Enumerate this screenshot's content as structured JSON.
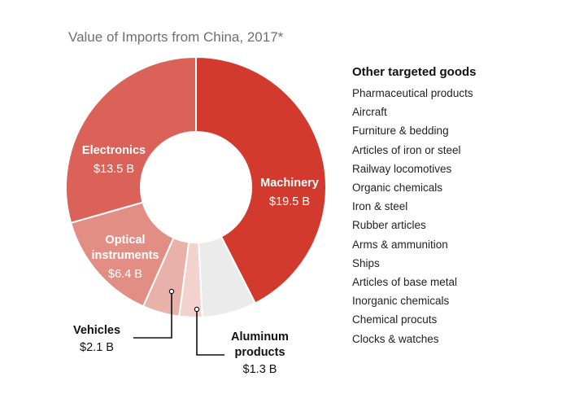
{
  "title": "Value of Imports from China, 2017*",
  "chart_data": {
    "type": "pie",
    "title": "Value of Imports from China, 2017*",
    "slices": [
      {
        "name": "Machinery",
        "label": "Machinery",
        "value": 19.5,
        "value_label": "$19.5 B",
        "color": "#d23a2d"
      },
      {
        "name": "Other",
        "label": "",
        "value": 3.1,
        "value_label": "",
        "color": "#ebebeb"
      },
      {
        "name": "Aluminum products",
        "label": "Aluminum products",
        "value": 1.3,
        "value_label": "$1.3 B",
        "color": "#f3d1cc"
      },
      {
        "name": "Vehicles",
        "label": "Vehicles",
        "value": 2.1,
        "value_label": "$2.1 B",
        "color": "#e8b1a9"
      },
      {
        "name": "Optical instruments",
        "label": "Optical instruments",
        "value": 6.4,
        "value_label": "$6.4 B",
        "color": "#e38e84"
      },
      {
        "name": "Electronics",
        "label": "Electronics",
        "value": 13.5,
        "value_label": "$13.5 B",
        "color": "#db6258"
      }
    ]
  },
  "labels": {
    "machinery": {
      "name": "Machinery",
      "value": "$19.5 B"
    },
    "electronics": {
      "name": "Electronics",
      "value": "$13.5 B"
    },
    "optical": {
      "line1": "Optical",
      "line2": "instruments",
      "value": "$6.4 B"
    },
    "vehicles": {
      "name": "Vehicles",
      "value": "$2.1 B"
    },
    "aluminum": {
      "line1": "Aluminum",
      "line2": "products",
      "value": "$1.3 B"
    }
  },
  "other_goods": {
    "title": "Other targeted goods",
    "items": [
      "Pharmaceutical products",
      "Aircraft",
      "Furniture & bedding",
      "Articles of iron or steel",
      "Railway locomotives",
      "Organic chemicals",
      "Iron & steel",
      "Rubber articles",
      "Arms & ammunition",
      "Ships",
      "Articles of base metal",
      "Inorganic chemicals",
      "Chemical procuts",
      "Clocks & watches"
    ]
  }
}
